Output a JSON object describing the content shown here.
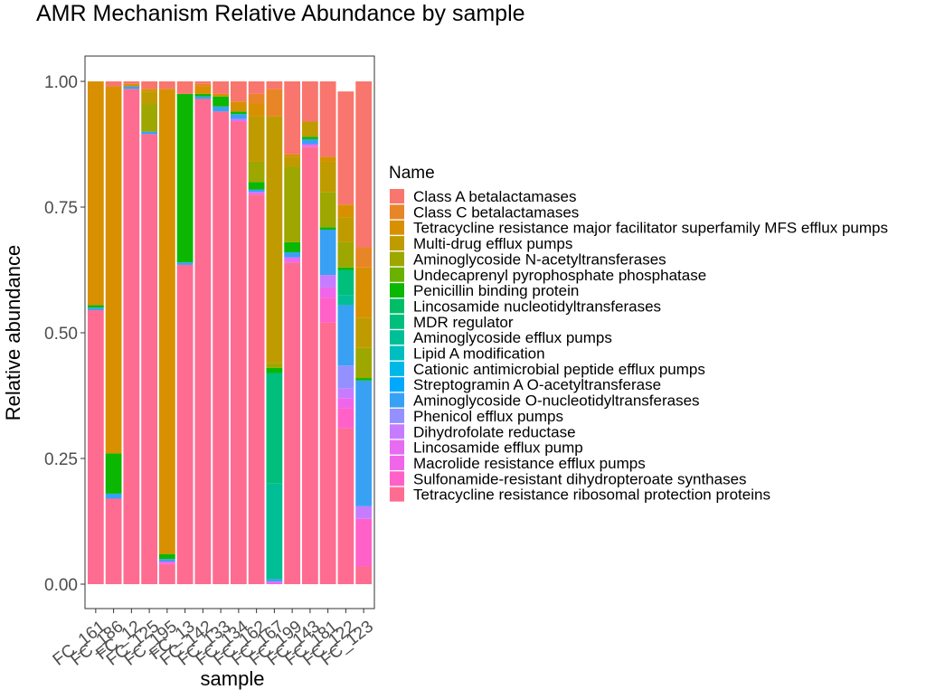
{
  "chart_data": {
    "type": "bar",
    "stacked": true,
    "title": "AMR Mechanism Relative Abundance by sample",
    "xlabel": "sample",
    "ylabel": "Relative abundance",
    "ylim": [
      0,
      1
    ],
    "yticks": [
      "0.00",
      "0.25",
      "0.50",
      "0.75",
      "1.00"
    ],
    "ytick_values": [
      0,
      0.25,
      0.5,
      0.75,
      1
    ],
    "grid": false,
    "legend_title": "Name",
    "legend_position": "right",
    "categories": [
      "FC_161",
      "FC_186",
      "FC_12",
      "FC_125",
      "FC_195",
      "FC_13",
      "FC_142",
      "FC_133",
      "FC_134",
      "FC_162",
      "FC_167",
      "FC_199",
      "FC_143",
      "FC_181",
      "FC_122",
      "FC_123"
    ],
    "category_labels_shown": [
      "FC_161",
      "FC_186",
      "FC_12",
      "FC_125",
      "FC_195",
      "FC_13",
      "FC_142",
      "FC_133",
      "FC_134",
      "FC_162",
      "FC_167",
      "FC_199",
      "FC_143",
      "FC_181",
      "FC_122",
      "FC_123"
    ],
    "series": [
      {
        "name": "Tetracycline resistance ribosomal protection proteins",
        "color": "#FF6C91",
        "values": [
          0.545,
          0.17,
          0.985,
          0.895,
          0.04,
          0.635,
          0.965,
          0.94,
          0.92,
          0.775,
          0.0,
          0.64,
          0.87,
          0.52,
          0.31,
          0.035
        ]
      },
      {
        "name": "Sulfonamide-resistant dihydropteroate synthases",
        "color": "#FF61C9",
        "values": [
          0,
          0,
          0,
          0,
          0,
          0,
          0,
          0,
          0,
          0,
          0,
          0,
          0,
          0.05,
          0.04,
          0.095
        ]
      },
      {
        "name": "Macrolide resistance efflux pumps",
        "color": "#F066EA",
        "values": [
          0,
          0,
          0,
          0,
          0.005,
          0,
          0,
          0,
          0,
          0,
          0.005,
          0,
          0,
          0.02,
          0.02,
          0
        ]
      },
      {
        "name": "Lincosamide efflux pump",
        "color": "#E76BF3",
        "values": [
          0,
          0,
          0,
          0,
          0,
          0,
          0,
          0,
          0.005,
          0.005,
          0,
          0.01,
          0.005,
          0,
          0,
          0
        ]
      },
      {
        "name": "Dihydrofolate reductase",
        "color": "#C77CFF",
        "values": [
          0,
          0,
          0,
          0,
          0,
          0,
          0,
          0,
          0,
          0,
          0,
          0,
          0,
          0.025,
          0.02,
          0.025
        ]
      },
      {
        "name": "Phenicol efflux pumps",
        "color": "#9590FF",
        "values": [
          0,
          0,
          0,
          0,
          0,
          0,
          0,
          0,
          0,
          0,
          0,
          0,
          0,
          0,
          0.045,
          0
        ]
      },
      {
        "name": "Aminoglycoside O-nucleotidyltransferases",
        "color": "#39A1F4",
        "values": [
          0.005,
          0.01,
          0.005,
          0.005,
          0.005,
          0.005,
          0.005,
          0.01,
          0.01,
          0.005,
          0.005,
          0.01,
          0.01,
          0.09,
          0.12,
          0.25
        ]
      },
      {
        "name": "Aminoglycoside efflux pumps",
        "color": "#00BF96",
        "values": [
          0,
          0,
          0,
          0,
          0,
          0,
          0,
          0,
          0,
          0,
          0.19,
          0,
          0,
          0,
          0.02,
          0
        ]
      },
      {
        "name": "MDR regulator",
        "color": "#00BF7D",
        "values": [
          0,
          0,
          0,
          0,
          0,
          0,
          0,
          0,
          0,
          0,
          0.22,
          0,
          0,
          0,
          0.05,
          0
        ]
      },
      {
        "name": "Penicillin binding protein",
        "color": "#0CB702",
        "values": [
          0.005,
          0.08,
          0,
          0,
          0.01,
          0.335,
          0.005,
          0.02,
          0.005,
          0.015,
          0.01,
          0.02,
          0.005,
          0.005,
          0.005,
          0.005
        ]
      },
      {
        "name": "Aminoglycoside N-acetyltransferases",
        "color": "#9DA700",
        "values": [
          0,
          0,
          0,
          0.055,
          0,
          0,
          0,
          0,
          0,
          0.04,
          0.01,
          0.15,
          0,
          0.07,
          0.05,
          0.06
        ]
      },
      {
        "name": "Multi-drug efflux pumps",
        "color": "#C09B00",
        "values": [
          0,
          0,
          0,
          0.025,
          0,
          0,
          0,
          0,
          0,
          0.09,
          0.49,
          0.02,
          0.03,
          0.06,
          0.05,
          0.06
        ]
      },
      {
        "name": "Tetracycline resistance major facilitator superfamily MFS efflux pumps",
        "color": "#D89000",
        "values": [
          0.445,
          0.73,
          0.005,
          0.005,
          0.925,
          0,
          0.015,
          0.005,
          0.02,
          0.025,
          0,
          0.005,
          0,
          0.01,
          0.025,
          0.1
        ]
      },
      {
        "name": "Class C betalactamases",
        "color": "#E88526",
        "values": [
          0,
          0,
          0,
          0,
          0,
          0,
          0.005,
          0,
          0,
          0.02,
          0.055,
          0,
          0,
          0,
          0,
          0.04
        ]
      },
      {
        "name": "Class A betalactamases",
        "color": "#F8766D",
        "values": [
          0,
          0.01,
          0.005,
          0.015,
          0.015,
          0.025,
          0.005,
          0.025,
          0.04,
          0.025,
          0.015,
          0.145,
          0.08,
          0.15,
          0.225,
          0.33
        ]
      }
    ],
    "legend": [
      {
        "name": "Class A betalactamases",
        "color": "#F8766D"
      },
      {
        "name": "Class C betalactamases",
        "color": "#E88526"
      },
      {
        "name": "Tetracycline resistance major facilitator superfamily MFS efflux pumps",
        "color": "#D89000"
      },
      {
        "name": "Multi-drug efflux pumps",
        "color": "#C09B00"
      },
      {
        "name": "Aminoglycoside N-acetyltransferases",
        "color": "#9DA700"
      },
      {
        "name": "Undecaprenyl pyrophosphate phosphatase",
        "color": "#6BB100"
      },
      {
        "name": "Penicillin binding protein",
        "color": "#0CB702"
      },
      {
        "name": "Lincosamide nucleotidyltransferases",
        "color": "#00BE67"
      },
      {
        "name": "MDR regulator",
        "color": "#00BF7D"
      },
      {
        "name": "Aminoglycoside efflux pumps",
        "color": "#00BF96"
      },
      {
        "name": "Lipid A modification",
        "color": "#00BDC0"
      },
      {
        "name": "Cationic antimicrobial peptide efflux pumps",
        "color": "#00B8E7"
      },
      {
        "name": "Streptogramin A O-acetyltransferase",
        "color": "#00A9FF"
      },
      {
        "name": "Aminoglycoside O-nucleotidyltransferases",
        "color": "#39A1F4"
      },
      {
        "name": "Phenicol efflux pumps",
        "color": "#9590FF"
      },
      {
        "name": "Dihydrofolate reductase",
        "color": "#C77CFF"
      },
      {
        "name": "Lincosamide efflux pump",
        "color": "#E76BF3"
      },
      {
        "name": "Macrolide resistance efflux pumps",
        "color": "#F066EA"
      },
      {
        "name": "Sulfonamide-resistant dihydropteroate synthases",
        "color": "#FF61C9"
      },
      {
        "name": "Tetracycline resistance ribosomal protection proteins",
        "color": "#FF6C91"
      }
    ]
  }
}
